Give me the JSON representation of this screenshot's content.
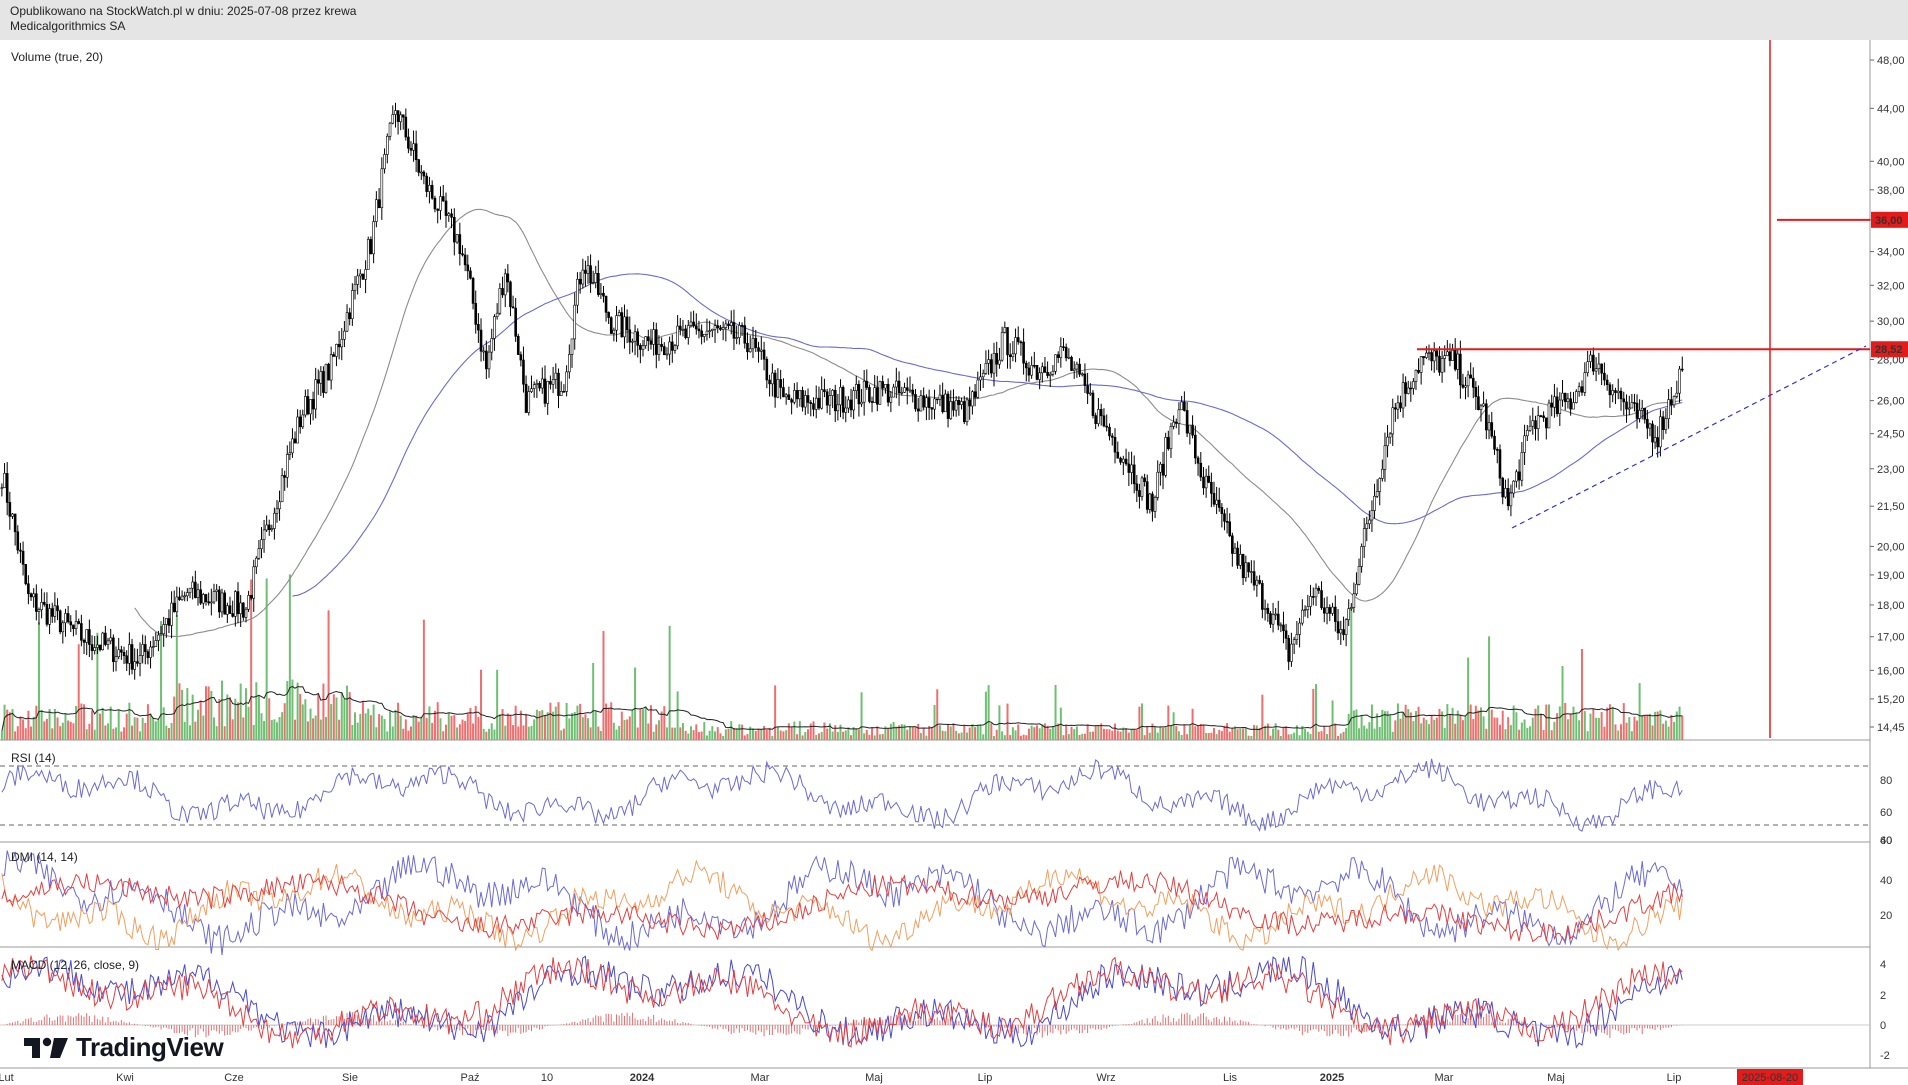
{
  "header": {
    "line1": "Opublikowano na StockWatch.pl w dniu: 2025-07-08 przez krewa",
    "line2": "Medicalgorithmics SA"
  },
  "branding": {
    "logo_text": "TradingView",
    "logo_icon": "tradingview-logo-icon"
  },
  "colors": {
    "candle": "#000000",
    "volume_up": "#6fbf73",
    "volume_down": "#ef6f6f",
    "ma_short": "#8c8c8c",
    "ma_long": "#6b6bd6",
    "level_line": "#e31b1b",
    "rsi": "#6b6bd6",
    "dmi_plus": "#6b6bd6",
    "dmi_minus": "#f0a060",
    "adx": "#e34040",
    "macd": "#4a4ad0",
    "signal": "#e34040",
    "price_tag_bg": "#e31b1b"
  },
  "x_axis": {
    "labels": [
      "Lut",
      "Kwi",
      "Cze",
      "Sie",
      "Paź",
      "10",
      "2024",
      "Mar",
      "Maj",
      "Lip",
      "Wrz",
      "Lis",
      "2025",
      "Mar",
      "Maj",
      "Lip"
    ],
    "marker_date": "2025-08-20"
  },
  "chart_data": [
    {
      "type": "candlestick",
      "pane": "price",
      "indicator_label": "Volume (true, 20)",
      "y_ticks": [
        "48,00",
        "44,00",
        "40,00",
        "38,00",
        "36,00",
        "34,00",
        "32,00",
        "30,00",
        "28,00",
        "26,00",
        "24,50",
        "23,00",
        "21,50",
        "20,00",
        "19,00",
        "18,00",
        "17,00",
        "16,00",
        "15,20",
        "14,45"
      ],
      "price_levels": [
        {
          "value": 36.0,
          "label": "36,00"
        },
        {
          "value": 28.52,
          "label": "28,52"
        }
      ],
      "approx_close_path": [
        {
          "date": "2023-02-01",
          "close": 22.8
        },
        {
          "date": "2023-02-15",
          "close": 18.2
        },
        {
          "date": "2023-03-15",
          "close": 17.0
        },
        {
          "date": "2023-04-15",
          "close": 16.3
        },
        {
          "date": "2023-05-10",
          "close": 18.4
        },
        {
          "date": "2023-06-10",
          "close": 17.9
        },
        {
          "date": "2023-06-25",
          "close": 21.5
        },
        {
          "date": "2023-07-10",
          "close": 25.5
        },
        {
          "date": "2023-07-25",
          "close": 27.6
        },
        {
          "date": "2023-08-15",
          "close": 34.5
        },
        {
          "date": "2023-08-28",
          "close": 44.0
        },
        {
          "date": "2023-09-12",
          "close": 38.5
        },
        {
          "date": "2023-10-01",
          "close": 34.5
        },
        {
          "date": "2023-10-15",
          "close": 27.5
        },
        {
          "date": "2023-10-25",
          "close": 33.0
        },
        {
          "date": "2023-11-05",
          "close": 26.0
        },
        {
          "date": "2023-11-25",
          "close": 27.0
        },
        {
          "date": "2023-12-05",
          "close": 33.5
        },
        {
          "date": "2023-12-20",
          "close": 30.0
        },
        {
          "date": "2024-01-10",
          "close": 28.8
        },
        {
          "date": "2024-02-10",
          "close": 29.5
        },
        {
          "date": "2024-03-01",
          "close": 29.0
        },
        {
          "date": "2024-03-20",
          "close": 26.0
        },
        {
          "date": "2024-04-15",
          "close": 26.0
        },
        {
          "date": "2024-05-10",
          "close": 26.5
        },
        {
          "date": "2024-06-05",
          "close": 26.0
        },
        {
          "date": "2024-06-25",
          "close": 25.5
        },
        {
          "date": "2024-07-15",
          "close": 29.0
        },
        {
          "date": "2024-08-01",
          "close": 27.5
        },
        {
          "date": "2024-08-15",
          "close": 28.3
        },
        {
          "date": "2024-09-01",
          "close": 25.5
        },
        {
          "date": "2024-09-20",
          "close": 23.0
        },
        {
          "date": "2024-10-01",
          "close": 21.5
        },
        {
          "date": "2024-10-15",
          "close": 26.0
        },
        {
          "date": "2024-10-28",
          "close": 22.5
        },
        {
          "date": "2024-11-15",
          "close": 19.5
        },
        {
          "date": "2024-12-01",
          "close": 18.0
        },
        {
          "date": "2024-12-12",
          "close": 16.5
        },
        {
          "date": "2024-12-25",
          "close": 18.5
        },
        {
          "date": "2025-01-10",
          "close": 17.0
        },
        {
          "date": "2025-01-25",
          "close": 21.5
        },
        {
          "date": "2025-02-05",
          "close": 25.5
        },
        {
          "date": "2025-02-20",
          "close": 28.0
        },
        {
          "date": "2025-03-10",
          "close": 27.8
        },
        {
          "date": "2025-03-25",
          "close": 25.5
        },
        {
          "date": "2025-04-07",
          "close": 21.5
        },
        {
          "date": "2025-04-20",
          "close": 25.0
        },
        {
          "date": "2025-05-10",
          "close": 26.0
        },
        {
          "date": "2025-05-22",
          "close": 28.0
        },
        {
          "date": "2025-06-10",
          "close": 25.5
        },
        {
          "date": "2025-06-25",
          "close": 24.5
        },
        {
          "date": "2025-07-08",
          "close": 27.5
        }
      ]
    },
    {
      "type": "line",
      "pane": "rsi",
      "indicator_label": "RSI (14)",
      "y_ticks": [
        "80",
        "60",
        "40"
      ],
      "bands": [
        70,
        30
      ]
    },
    {
      "type": "line",
      "pane": "dmi",
      "indicator_label": "DMI (14, 14)",
      "y_ticks": [
        "60",
        "40",
        "20"
      ]
    },
    {
      "type": "line",
      "pane": "macd",
      "indicator_label": "MACD (12, 26, close, 9)",
      "y_ticks": [
        "4",
        "2",
        "0",
        "-2"
      ]
    }
  ]
}
